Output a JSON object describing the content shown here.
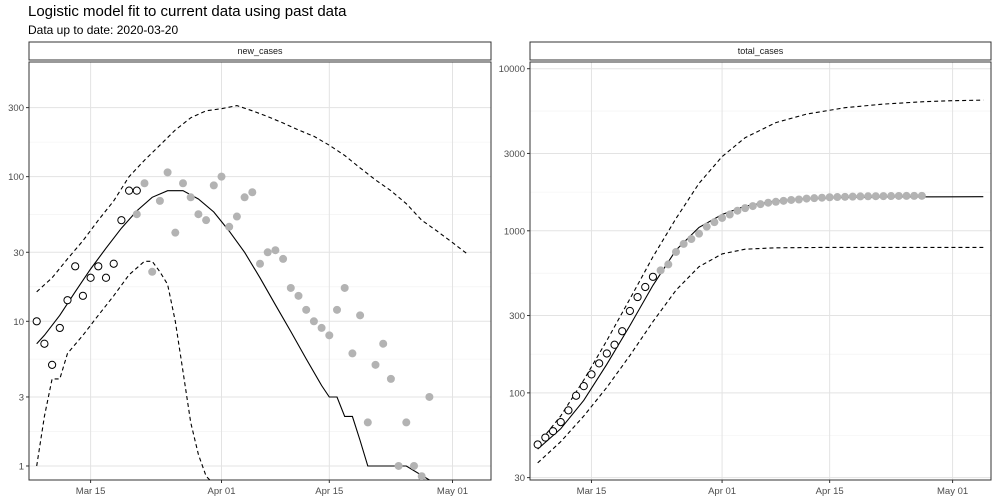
{
  "title": "Logistic model fit to current data using past data",
  "subtitle": "Data up to date: 2020-03-20",
  "chart_data": [
    {
      "type": "scatter",
      "panel": "new_cases",
      "y_scale": "log10",
      "ylim": [
        0.8,
        620
      ],
      "y_ticks": [
        1,
        3,
        10,
        30,
        100,
        300
      ],
      "y_tick_labels": [
        "1",
        "3",
        "10",
        "30",
        "100",
        "300"
      ],
      "xlim": [
        "2020-03-07",
        "2020-05-06"
      ],
      "x_ticks": [
        "2020-03-15",
        "2020-04-01",
        "2020-04-15",
        "2020-05-01"
      ],
      "x_tick_labels": [
        "Mar 15",
        "Apr 01",
        "Apr 15",
        "May 01"
      ],
      "grid": true,
      "observed_points": {
        "x": [
          "2020-03-08",
          "2020-03-09",
          "2020-03-10",
          "2020-03-11",
          "2020-03-12",
          "2020-03-13",
          "2020-03-14",
          "2020-03-15",
          "2020-03-16",
          "2020-03-17",
          "2020-03-18",
          "2020-03-19",
          "2020-03-20",
          "2020-03-21"
        ],
        "y": [
          10,
          7,
          5,
          9,
          14,
          24,
          15,
          20,
          24,
          20,
          25,
          50,
          80,
          80
        ]
      },
      "later_points": {
        "x": [
          "2020-03-21",
          "2020-03-22",
          "2020-03-23",
          "2020-03-24",
          "2020-03-25",
          "2020-03-26",
          "2020-03-27",
          "2020-03-28",
          "2020-03-29",
          "2020-03-30",
          "2020-03-31",
          "2020-04-01",
          "2020-04-02",
          "2020-04-03",
          "2020-04-04",
          "2020-04-05",
          "2020-04-06",
          "2020-04-07",
          "2020-04-08",
          "2020-04-09",
          "2020-04-10",
          "2020-04-11",
          "2020-04-12",
          "2020-04-13",
          "2020-04-14",
          "2020-04-15",
          "2020-04-16",
          "2020-04-17",
          "2020-04-18",
          "2020-04-19",
          "2020-04-20",
          "2020-04-21",
          "2020-04-22",
          "2020-04-23",
          "2020-04-24",
          "2020-04-25",
          "2020-04-26",
          "2020-04-27",
          "2020-04-28"
        ],
        "y": [
          55,
          90,
          22,
          68,
          107,
          41,
          90,
          72,
          55,
          50,
          87,
          100,
          45,
          53,
          72,
          78,
          25,
          30,
          31,
          27,
          17,
          15,
          12,
          10,
          9,
          8,
          12,
          17,
          6,
          11,
          2,
          5,
          7,
          4,
          1,
          2,
          1,
          0.85,
          3
        ]
      },
      "fit_line": {
        "x": [
          "2020-03-08",
          "2020-03-09",
          "2020-03-11",
          "2020-03-13",
          "2020-03-15",
          "2020-03-17",
          "2020-03-19",
          "2020-03-21",
          "2020-03-23",
          "2020-03-25",
          "2020-03-27",
          "2020-03-29",
          "2020-03-31",
          "2020-04-02",
          "2020-04-04",
          "2020-04-06",
          "2020-04-08",
          "2020-04-10",
          "2020-04-12",
          "2020-04-14",
          "2020-04-15",
          "2020-04-16",
          "2020-04-17",
          "2020-04-18",
          "2020-04-19",
          "2020-04-20",
          "2020-04-22",
          "2020-04-25",
          "2020-04-28"
        ],
        "y": [
          7,
          8,
          11,
          16,
          23,
          32,
          44,
          58,
          72,
          80,
          80,
          70,
          57,
          42,
          30,
          20,
          13,
          8.5,
          5.5,
          3.6,
          3,
          3,
          2.2,
          2.2,
          1.5,
          1,
          1,
          1,
          0.8
        ]
      },
      "upper_band": {
        "x": [
          "2020-03-08",
          "2020-03-10",
          "2020-03-12",
          "2020-03-14",
          "2020-03-16",
          "2020-03-18",
          "2020-03-20",
          "2020-03-22",
          "2020-03-24",
          "2020-03-26",
          "2020-03-28",
          "2020-03-30",
          "2020-04-01",
          "2020-04-03",
          "2020-04-05",
          "2020-04-07",
          "2020-04-09",
          "2020-04-11",
          "2020-04-13",
          "2020-04-15",
          "2020-04-17",
          "2020-04-19",
          "2020-04-21",
          "2020-04-23",
          "2020-04-25",
          "2020-04-27",
          "2020-04-29",
          "2020-05-01",
          "2020-05-03"
        ],
        "y": [
          16,
          20,
          27,
          36,
          50,
          68,
          100,
          130,
          165,
          210,
          255,
          285,
          295,
          310,
          285,
          260,
          235,
          210,
          190,
          165,
          140,
          115,
          95,
          80,
          65,
          50,
          42,
          35,
          29
        ]
      },
      "lower_band": {
        "x": [
          "2020-03-08",
          "2020-03-09",
          "2020-03-10",
          "2020-03-11",
          "2020-03-12",
          "2020-03-14",
          "2020-03-16",
          "2020-03-18",
          "2020-03-20",
          "2020-03-22",
          "2020-03-23",
          "2020-03-24",
          "2020-03-25",
          "2020-03-26",
          "2020-03-27",
          "2020-03-28",
          "2020-03-29",
          "2020-03-30",
          "2020-03-31",
          "2020-04-01"
        ],
        "y": [
          1,
          2.2,
          4,
          4,
          6,
          8,
          11,
          15,
          21,
          26,
          26,
          22,
          18,
          10,
          4.5,
          2,
          1.2,
          0.85,
          0.75,
          0.7
        ]
      }
    },
    {
      "type": "scatter",
      "panel": "total_cases",
      "y_scale": "log10",
      "ylim": [
        29,
        11000
      ],
      "y_ticks": [
        30,
        100,
        300,
        1000,
        3000,
        10000
      ],
      "y_tick_labels": [
        "30",
        "100",
        "300",
        "1000",
        "3000",
        "10000"
      ],
      "xlim": [
        "2020-03-07",
        "2020-05-06"
      ],
      "x_ticks": [
        "2020-03-15",
        "2020-04-01",
        "2020-04-15",
        "2020-05-01"
      ],
      "x_tick_labels": [
        "Mar 15",
        "Apr 01",
        "Apr 15",
        "May 01"
      ],
      "grid": true,
      "observed_points": {
        "x": [
          "2020-03-08",
          "2020-03-09",
          "2020-03-10",
          "2020-03-11",
          "2020-03-12",
          "2020-03-13",
          "2020-03-14",
          "2020-03-15",
          "2020-03-16",
          "2020-03-17",
          "2020-03-18",
          "2020-03-19",
          "2020-03-20",
          "2020-03-21",
          "2020-03-22",
          "2020-03-23"
        ],
        "y": [
          48,
          53,
          58,
          66,
          78,
          96,
          110,
          130,
          152,
          175,
          198,
          240,
          320,
          390,
          450,
          520
        ]
      },
      "later_points": {
        "x": [
          "2020-03-24",
          "2020-03-25",
          "2020-03-26",
          "2020-03-27",
          "2020-03-28",
          "2020-03-29",
          "2020-03-30",
          "2020-03-31",
          "2020-04-01",
          "2020-04-02",
          "2020-04-03",
          "2020-04-04",
          "2020-04-05",
          "2020-04-06",
          "2020-04-07",
          "2020-04-08",
          "2020-04-09",
          "2020-04-10",
          "2020-04-11",
          "2020-04-12",
          "2020-04-13",
          "2020-04-14",
          "2020-04-15",
          "2020-04-16",
          "2020-04-17",
          "2020-04-18",
          "2020-04-19",
          "2020-04-20",
          "2020-04-21",
          "2020-04-22",
          "2020-04-23",
          "2020-04-24",
          "2020-04-25",
          "2020-04-26",
          "2020-04-27"
        ],
        "y": [
          570,
          620,
          740,
          830,
          890,
          960,
          1060,
          1130,
          1200,
          1260,
          1330,
          1380,
          1420,
          1460,
          1490,
          1510,
          1530,
          1550,
          1560,
          1580,
          1590,
          1600,
          1610,
          1615,
          1620,
          1625,
          1630,
          1632,
          1634,
          1636,
          1638,
          1640,
          1641,
          1642,
          1643
        ]
      },
      "fit_line": {
        "x": [
          "2020-03-08",
          "2020-03-11",
          "2020-03-14",
          "2020-03-17",
          "2020-03-20",
          "2020-03-23",
          "2020-03-26",
          "2020-03-29",
          "2020-04-01",
          "2020-04-04",
          "2020-04-08",
          "2020-04-12",
          "2020-04-17",
          "2020-04-22",
          "2020-05-01",
          "2020-05-05"
        ],
        "y": [
          45,
          60,
          90,
          150,
          260,
          460,
          760,
          1050,
          1260,
          1420,
          1530,
          1580,
          1605,
          1615,
          1620,
          1622
        ]
      },
      "upper_band": {
        "x": [
          "2020-03-08",
          "2020-03-11",
          "2020-03-14",
          "2020-03-17",
          "2020-03-20",
          "2020-03-23",
          "2020-03-26",
          "2020-03-29",
          "2020-04-01",
          "2020-04-04",
          "2020-04-08",
          "2020-04-12",
          "2020-04-17",
          "2020-04-22",
          "2020-04-27",
          "2020-05-01",
          "2020-05-05"
        ],
        "y": [
          48,
          72,
          120,
          210,
          380,
          690,
          1190,
          1960,
          2870,
          3750,
          4650,
          5250,
          5750,
          6050,
          6250,
          6350,
          6400
        ]
      },
      "lower_band": {
        "x": [
          "2020-03-08",
          "2020-03-11",
          "2020-03-14",
          "2020-03-17",
          "2020-03-20",
          "2020-03-23",
          "2020-03-26",
          "2020-03-29",
          "2020-04-01",
          "2020-04-04",
          "2020-04-08",
          "2020-04-15",
          "2020-04-25",
          "2020-05-05"
        ],
        "y": [
          37,
          50,
          72,
          108,
          170,
          275,
          430,
          600,
          720,
          770,
          785,
          790,
          790,
          790
        ]
      }
    }
  ]
}
